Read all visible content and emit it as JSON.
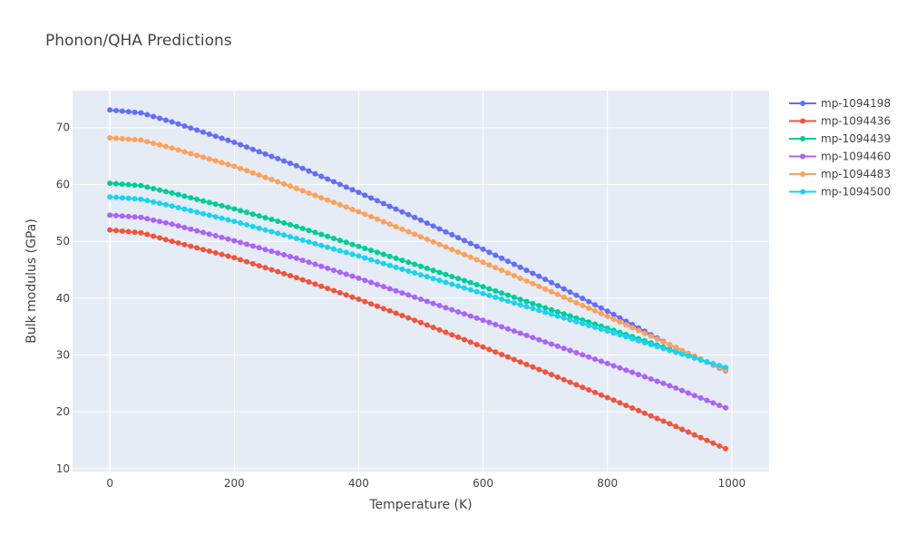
{
  "chart_data": {
    "type": "line",
    "title": "Phonon/QHA Predictions",
    "xlabel": "Temperature (K)",
    "ylabel": "Bulk modulus (GPa)",
    "xlim": [
      -60,
      1060
    ],
    "ylim": [
      9.5,
      76.5
    ],
    "xticks": [
      0,
      200,
      400,
      600,
      800,
      1000
    ],
    "yticks": [
      10,
      20,
      30,
      40,
      50,
      60,
      70
    ],
    "grid": true,
    "legend_position": "top-right",
    "x_range": {
      "start": 0,
      "end": 990,
      "step": 10
    },
    "series": [
      {
        "name": "mp-1094198",
        "color": "#636efa",
        "points": [
          [
            0,
            73.1
          ],
          [
            50,
            72.6
          ],
          [
            100,
            71.0
          ],
          [
            200,
            67.4
          ],
          [
            300,
            63.3
          ],
          [
            400,
            58.6
          ],
          [
            500,
            53.7
          ],
          [
            600,
            48.6
          ],
          [
            700,
            43.3
          ],
          [
            800,
            37.7
          ],
          [
            900,
            31.8
          ],
          [
            990,
            27.2
          ]
        ]
      },
      {
        "name": "mp-1094436",
        "color": "#ef553b",
        "points": [
          [
            0,
            52.0
          ],
          [
            50,
            51.5
          ],
          [
            100,
            50.0
          ],
          [
            200,
            47.1
          ],
          [
            300,
            43.6
          ],
          [
            400,
            39.8
          ],
          [
            500,
            35.7
          ],
          [
            600,
            31.4
          ],
          [
            700,
            27.0
          ],
          [
            800,
            22.5
          ],
          [
            900,
            17.9
          ],
          [
            990,
            13.5
          ]
        ]
      },
      {
        "name": "mp-1094439",
        "color": "#00cc96",
        "points": [
          [
            0,
            60.2
          ],
          [
            50,
            59.8
          ],
          [
            100,
            58.5
          ],
          [
            200,
            55.7
          ],
          [
            300,
            52.6
          ],
          [
            400,
            49.1
          ],
          [
            500,
            45.6
          ],
          [
            600,
            42.0
          ],
          [
            700,
            38.3
          ],
          [
            800,
            34.7
          ],
          [
            900,
            31.0
          ],
          [
            990,
            27.6
          ]
        ]
      },
      {
        "name": "mp-1094460",
        "color": "#ab63fa",
        "points": [
          [
            0,
            54.6
          ],
          [
            50,
            54.2
          ],
          [
            100,
            53.0
          ],
          [
            200,
            50.1
          ],
          [
            300,
            47.0
          ],
          [
            400,
            43.5
          ],
          [
            500,
            39.8
          ],
          [
            600,
            36.1
          ],
          [
            700,
            32.3
          ],
          [
            800,
            28.5
          ],
          [
            900,
            24.6
          ],
          [
            990,
            20.7
          ]
        ]
      },
      {
        "name": "mp-1094483",
        "color": "#ffa15a",
        "points": [
          [
            0,
            68.2
          ],
          [
            50,
            67.8
          ],
          [
            100,
            66.4
          ],
          [
            200,
            63.2
          ],
          [
            300,
            59.3
          ],
          [
            400,
            55.2
          ],
          [
            500,
            50.8
          ],
          [
            600,
            46.3
          ],
          [
            700,
            41.6
          ],
          [
            800,
            36.8
          ],
          [
            900,
            31.8
          ],
          [
            990,
            27.3
          ]
        ]
      },
      {
        "name": "mp-1094500",
        "color": "#19d3f3",
        "points": [
          [
            0,
            57.8
          ],
          [
            50,
            57.4
          ],
          [
            100,
            56.2
          ],
          [
            200,
            53.5
          ],
          [
            300,
            50.5
          ],
          [
            400,
            47.4
          ],
          [
            500,
            44.1
          ],
          [
            600,
            40.8
          ],
          [
            700,
            37.5
          ],
          [
            800,
            34.2
          ],
          [
            900,
            30.8
          ],
          [
            990,
            27.8
          ]
        ]
      }
    ]
  }
}
